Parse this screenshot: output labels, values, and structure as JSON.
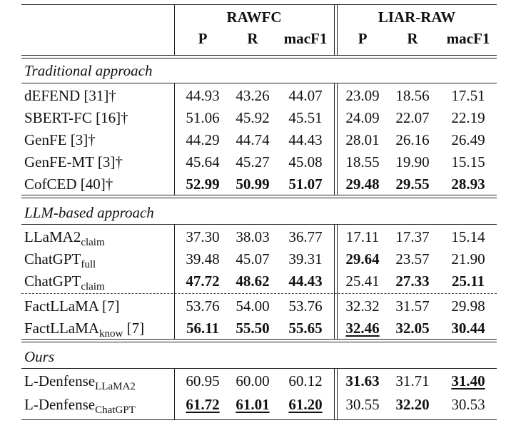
{
  "header": {
    "group1": "RAWFC",
    "group2": "LIAR-RAW",
    "cols": [
      "P",
      "R",
      "macF1",
      "P",
      "R",
      "macF1"
    ]
  },
  "sections": [
    {
      "title": "Traditional approach",
      "rows": [
        {
          "name": "dEFEND [31]†",
          "values": [
            "44.93",
            "43.26",
            "44.07",
            "23.09",
            "18.56",
            "17.51"
          ],
          "bold": [],
          "underline": []
        },
        {
          "name": "SBERT-FC [16]†",
          "values": [
            "51.06",
            "45.92",
            "45.51",
            "24.09",
            "22.07",
            "22.19"
          ],
          "bold": [],
          "underline": []
        },
        {
          "name": "GenFE [3]†",
          "values": [
            "44.29",
            "44.74",
            "44.43",
            "28.01",
            "26.16",
            "26.49"
          ],
          "bold": [],
          "underline": []
        },
        {
          "name": "GenFE-MT [3]†",
          "values": [
            "45.64",
            "45.27",
            "45.08",
            "18.55",
            "19.90",
            "15.15"
          ],
          "bold": [],
          "underline": []
        },
        {
          "name": "CofCED [40]†",
          "values": [
            "52.99",
            "50.99",
            "51.07",
            "29.48",
            "29.55",
            "28.93"
          ],
          "bold": [
            0,
            1,
            2,
            3,
            4,
            5
          ],
          "underline": []
        }
      ]
    },
    {
      "title": "LLM-based approach",
      "rows": [
        {
          "name": "LLaMA2",
          "sub": "claim",
          "suffix": "",
          "values": [
            "37.30",
            "38.03",
            "36.77",
            "17.11",
            "17.37",
            "15.14"
          ],
          "bold": [],
          "underline": []
        },
        {
          "name": "ChatGPT",
          "sub": "full",
          "suffix": "",
          "values": [
            "39.48",
            "45.07",
            "39.31",
            "29.64",
            "23.57",
            "21.90"
          ],
          "bold": [
            3
          ],
          "underline": []
        },
        {
          "name": "ChatGPT",
          "sub": "claim",
          "suffix": "",
          "values": [
            "47.72",
            "48.62",
            "44.43",
            "25.41",
            "27.33",
            "25.11"
          ],
          "bold": [
            0,
            1,
            2,
            4,
            5
          ],
          "underline": []
        },
        {
          "name": "FactLLaMA [7]",
          "values": [
            "53.76",
            "54.00",
            "53.76",
            "32.32",
            "31.57",
            "29.98"
          ],
          "bold": [],
          "underline": []
        },
        {
          "name": "FactLLaMA",
          "sub": "know",
          "suffix": " [7]",
          "values": [
            "56.11",
            "55.50",
            "55.65",
            "32.46",
            "32.05",
            "30.44"
          ],
          "bold": [
            0,
            1,
            2,
            3,
            4,
            5
          ],
          "underline": [
            3
          ]
        }
      ]
    },
    {
      "title": "Ours",
      "rows": [
        {
          "name": "L-Denfense",
          "sub": "LLaMA2",
          "suffix": "",
          "values": [
            "60.95",
            "60.00",
            "60.12",
            "31.63",
            "31.71",
            "31.40"
          ],
          "bold": [
            3,
            5
          ],
          "underline": [
            5
          ]
        },
        {
          "name": "L-Denfense",
          "sub": "ChatGPT",
          "suffix": "",
          "values": [
            "61.72",
            "61.01",
            "61.20",
            "30.55",
            "32.20",
            "30.53"
          ],
          "bold": [
            0,
            1,
            2,
            4
          ],
          "underline": [
            0,
            1,
            2
          ]
        }
      ]
    }
  ]
}
